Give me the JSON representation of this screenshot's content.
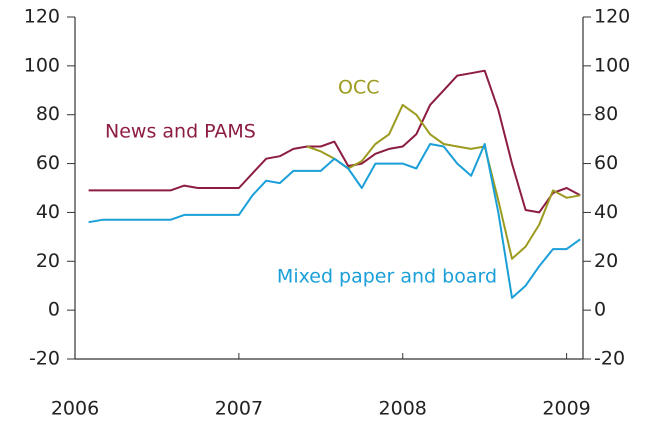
{
  "chart_data": {
    "type": "line",
    "x": [
      2006.083,
      2006.167,
      2006.25,
      2006.333,
      2006.417,
      2006.5,
      2006.583,
      2006.667,
      2006.75,
      2006.833,
      2006.917,
      2007.0,
      2007.083,
      2007.167,
      2007.25,
      2007.333,
      2007.417,
      2007.5,
      2007.583,
      2007.667,
      2007.75,
      2007.833,
      2007.917,
      2008.0,
      2008.083,
      2008.167,
      2008.25,
      2008.333,
      2008.417,
      2008.5,
      2008.583,
      2008.667,
      2008.75,
      2008.833,
      2008.917,
      2009.0,
      2009.083
    ],
    "series": [
      {
        "name": "News and PAMS",
        "color": "#8c1d40",
        "values": [
          49,
          49,
          49,
          49,
          49,
          49,
          49,
          51,
          50,
          50,
          50,
          50,
          56,
          62,
          63,
          66,
          67,
          67,
          69,
          59,
          60,
          64,
          66,
          67,
          72,
          84,
          90,
          96,
          97,
          98,
          82,
          60,
          41,
          40,
          48,
          50,
          47
        ]
      },
      {
        "name": "OCC",
        "color": "#9c9b1f",
        "values": [
          null,
          null,
          null,
          null,
          null,
          null,
          null,
          null,
          null,
          null,
          null,
          null,
          null,
          null,
          null,
          null,
          67,
          65,
          62,
          58,
          61,
          68,
          72,
          84,
          80,
          72,
          68,
          67,
          66,
          67,
          45,
          21,
          26,
          35,
          49,
          46,
          47
        ]
      },
      {
        "name": "Mixed paper and board",
        "color": "#1a9fd8",
        "values": [
          36,
          37,
          37,
          37,
          37,
          37,
          37,
          39,
          39,
          39,
          39,
          39,
          47,
          53,
          52,
          57,
          57,
          57,
          62,
          58,
          50,
          60,
          60,
          60,
          58,
          68,
          67,
          60,
          55,
          68,
          40,
          5,
          10,
          18,
          25,
          25,
          29
        ]
      }
    ],
    "xlim": [
      2006,
      2009.1
    ],
    "xticks": [
      2006,
      2007,
      2008,
      2009
    ],
    "ylim": [
      -20,
      120
    ],
    "yticks": [
      -20,
      0,
      20,
      40,
      60,
      80,
      100,
      120
    ],
    "y2lim": [
      -20,
      120
    ],
    "y2ticks": [
      -20,
      0,
      20,
      40,
      60,
      80,
      100,
      120
    ]
  }
}
